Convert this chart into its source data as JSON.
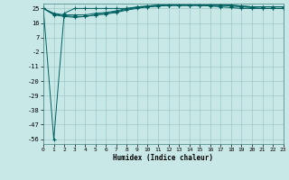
{
  "xlabel": "Humidex (Indice chaleur)",
  "bg_color": "#c8e8e8",
  "grid_color": "#a0c8c8",
  "line_color": "#006060",
  "ylim": [
    -59,
    28
  ],
  "xlim": [
    0,
    23
  ],
  "yticks": [
    25,
    16,
    7,
    -2,
    -11,
    -20,
    -29,
    -38,
    -47,
    -56
  ],
  "xticks": [
    0,
    1,
    2,
    3,
    4,
    5,
    6,
    7,
    8,
    9,
    10,
    11,
    12,
    13,
    14,
    15,
    16,
    17,
    18,
    19,
    20,
    21,
    22,
    23
  ],
  "line1": [
    25,
    -56,
    22,
    25,
    25,
    25,
    25,
    25,
    25,
    25.5,
    26,
    26.5,
    27,
    27,
    27,
    27,
    27,
    27,
    27,
    26.5,
    26,
    26,
    26,
    26
  ],
  "line2": [
    25,
    22,
    21,
    21,
    21,
    22,
    22.5,
    23.5,
    25,
    26,
    26.5,
    27,
    27,
    27,
    27,
    27,
    27,
    27,
    27,
    26.5,
    26,
    26,
    26,
    26
  ],
  "line3": [
    25,
    21.5,
    20.5,
    20,
    20,
    21,
    22,
    23,
    24.5,
    25.5,
    26.5,
    27,
    27,
    27,
    27,
    27,
    27,
    27,
    26.5,
    26,
    25.5,
    25,
    25,
    25
  ],
  "line4": [
    25,
    21,
    20,
    19.5,
    20,
    21,
    21.5,
    22.5,
    24,
    25,
    26,
    26.5,
    27,
    27,
    27,
    27,
    26.5,
    26,
    25.5,
    25,
    25,
    25,
    25,
    25
  ]
}
